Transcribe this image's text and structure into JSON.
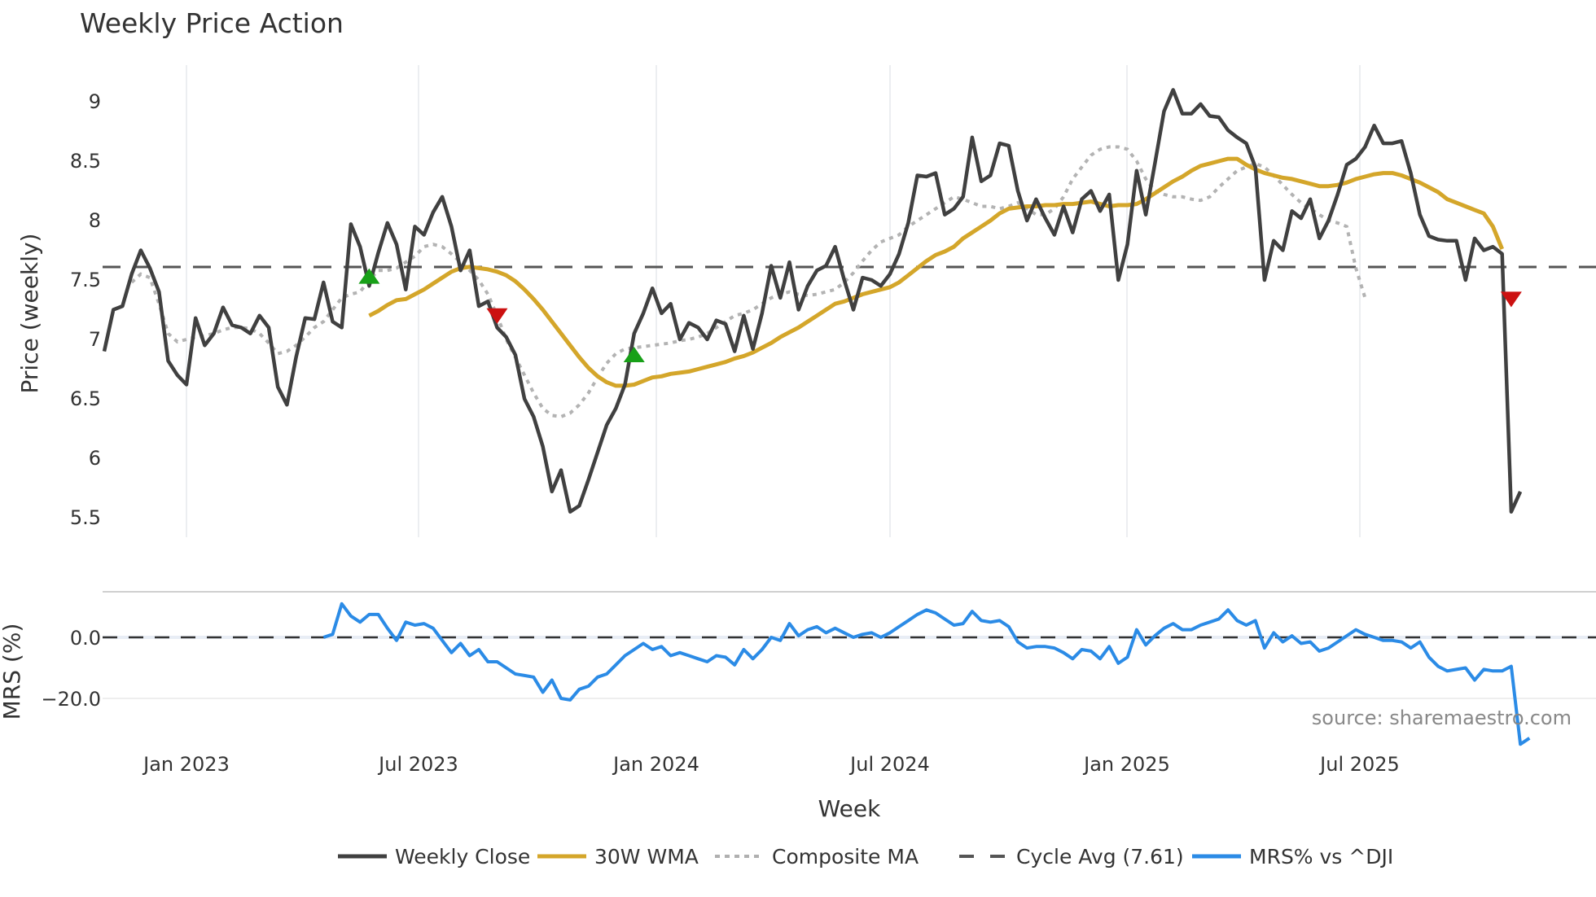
{
  "title": "Weekly Price Action",
  "source_note": "source: sharemaestro.com",
  "legend": [
    {
      "label": "Weekly Close",
      "color": "#404040",
      "style": "solid"
    },
    {
      "label": "30W WMA",
      "color": "#d4a62a",
      "style": "solid"
    },
    {
      "label": "Composite MA",
      "color": "#b0b0b0",
      "style": "dotted"
    },
    {
      "label": "Cycle Avg (7.61)",
      "color": "#555555",
      "style": "dashed"
    },
    {
      "label": "MRS% vs ^DJI",
      "color": "#2b8be6",
      "style": "solid"
    }
  ],
  "axes": {
    "price_ylabel": "Price (weekly)",
    "mrs_ylabel": "MRS (%)",
    "xlabel": "Week",
    "price_ticks": [
      "9",
      "8.5",
      "8",
      "7.5",
      "7",
      "6.5",
      "6",
      "5.5"
    ],
    "mrs_ticks": [
      "0.0",
      "−20.0"
    ],
    "x_ticks": [
      "Jan 2023",
      "Jul 2023",
      "Jan 2024",
      "Jul 2024",
      "Jan 2025",
      "Jul 2025"
    ]
  },
  "chart_data": {
    "type": "line",
    "title": "Weekly Price Action",
    "xlabel": "Week",
    "ylabel": "Price (weekly)",
    "ylim": [
      5.35,
      9.3
    ],
    "x_ticks": [
      "Jan 2023",
      "Jul 2023",
      "Jan 2024",
      "Jul 2024",
      "Jan 2025",
      "Jul 2025"
    ],
    "cycle_avg": 7.61,
    "series": [
      {
        "name": "Weekly Close",
        "start_week": 0,
        "values": [
          6.9,
          7.25,
          7.28,
          7.55,
          7.75,
          7.6,
          7.4,
          6.82,
          6.7,
          6.62,
          7.18,
          6.95,
          7.05,
          7.27,
          7.12,
          7.1,
          7.05,
          7.2,
          7.1,
          6.6,
          6.45,
          6.85,
          7.18,
          7.17,
          7.48,
          7.15,
          7.1,
          7.97,
          7.78,
          7.45,
          7.73,
          7.98,
          7.8,
          7.42,
          7.95,
          7.88,
          8.07,
          8.2,
          7.95,
          7.58,
          7.75,
          7.28,
          7.32,
          7.1,
          7.02,
          6.87,
          6.5,
          6.35,
          6.1,
          5.72,
          5.9,
          5.55,
          5.6,
          5.82,
          6.05,
          6.28,
          6.42,
          6.62,
          7.05,
          7.22,
          7.43,
          7.22,
          7.3,
          7.0,
          7.14,
          7.1,
          7.0,
          7.16,
          7.13,
          6.9,
          7.2,
          6.92,
          7.22,
          7.62,
          7.35,
          7.65,
          7.25,
          7.45,
          7.58,
          7.62,
          7.78,
          7.5,
          7.25,
          7.52,
          7.5,
          7.45,
          7.55,
          7.72,
          7.98,
          8.38,
          8.37,
          8.4,
          8.05,
          8.1,
          8.2,
          8.7,
          8.33,
          8.38,
          8.65,
          8.63,
          8.25,
          8.0,
          8.18,
          8.02,
          7.88,
          8.12,
          7.9,
          8.18,
          8.25,
          8.08,
          8.22,
          7.5,
          7.8,
          8.42,
          8.05,
          8.48,
          8.92,
          9.1,
          8.9,
          8.9,
          8.98,
          8.88,
          8.87,
          8.76,
          8.7,
          8.65,
          8.45,
          7.5,
          7.83,
          7.75,
          8.08,
          8.02,
          8.18,
          7.85,
          8.0,
          8.22,
          8.47,
          8.52,
          8.62,
          8.8,
          8.65,
          8.65,
          8.67,
          8.4,
          8.05,
          7.87,
          7.84,
          7.83,
          7.83,
          7.5,
          7.85,
          7.75,
          7.78,
          7.72,
          5.55,
          5.72
        ]
      },
      {
        "name": "30W WMA",
        "start_week": 29,
        "values": [
          7.2,
          7.24,
          7.29,
          7.33,
          7.34,
          7.38,
          7.42,
          7.47,
          7.52,
          7.57,
          7.6,
          7.61,
          7.6,
          7.59,
          7.57,
          7.54,
          7.49,
          7.42,
          7.34,
          7.25,
          7.15,
          7.05,
          6.95,
          6.85,
          6.76,
          6.69,
          6.64,
          6.61,
          6.61,
          6.62,
          6.65,
          6.68,
          6.69,
          6.71,
          6.72,
          6.73,
          6.75,
          6.77,
          6.79,
          6.81,
          6.84,
          6.86,
          6.89,
          6.93,
          6.97,
          7.02,
          7.06,
          7.1,
          7.15,
          7.2,
          7.25,
          7.3,
          7.32,
          7.35,
          7.38,
          7.4,
          7.42,
          7.44,
          7.48,
          7.54,
          7.6,
          7.66,
          7.71,
          7.74,
          7.78,
          7.85,
          7.9,
          7.95,
          8.0,
          8.06,
          8.1,
          8.11,
          8.12,
          8.12,
          8.13,
          8.13,
          8.14,
          8.14,
          8.15,
          8.16,
          8.14,
          8.12,
          8.13,
          8.13,
          8.14,
          8.18,
          8.23,
          8.28,
          8.33,
          8.37,
          8.42,
          8.46,
          8.48,
          8.5,
          8.52,
          8.52,
          8.47,
          8.43,
          8.4,
          8.38,
          8.36,
          8.35,
          8.33,
          8.31,
          8.29,
          8.29,
          8.3,
          8.32,
          8.35,
          8.37,
          8.39,
          8.4,
          8.4,
          8.38,
          8.35,
          8.32,
          8.28,
          8.24,
          8.18,
          8.15,
          8.12,
          8.09,
          8.06,
          7.95,
          7.76
        ]
      },
      {
        "name": "Composite MA",
        "start_week": 3,
        "values": [
          7.48,
          7.55,
          7.52,
          7.3,
          7.05,
          6.98,
          7.0,
          7.02,
          7.03,
          7.05,
          7.08,
          7.1,
          7.1,
          7.09,
          7.05,
          6.97,
          6.88,
          6.9,
          6.95,
          7.02,
          7.1,
          7.15,
          7.25,
          7.35,
          7.38,
          7.4,
          7.5,
          7.58,
          7.58,
          7.6,
          7.65,
          7.7,
          7.78,
          7.8,
          7.78,
          7.72,
          7.65,
          7.58,
          7.5,
          7.38,
          7.2,
          7.0,
          6.85,
          6.7,
          6.55,
          6.42,
          6.36,
          6.35,
          6.38,
          6.45,
          6.55,
          6.68,
          6.8,
          6.88,
          6.92,
          6.93,
          6.94,
          6.95,
          6.96,
          6.97,
          6.99,
          7.0,
          7.02,
          7.05,
          7.1,
          7.15,
          7.2,
          7.22,
          7.25,
          7.3,
          7.35,
          7.38,
          7.4,
          7.38,
          7.37,
          7.38,
          7.4,
          7.42,
          7.48,
          7.56,
          7.66,
          7.75,
          7.82,
          7.85,
          7.88,
          7.95,
          8.0,
          8.05,
          8.1,
          8.15,
          8.2,
          8.18,
          8.15,
          8.12,
          8.12,
          8.1,
          8.12,
          8.15,
          8.1,
          8.05,
          8.05,
          8.1,
          8.2,
          8.35,
          8.45,
          8.55,
          8.6,
          8.62,
          8.62,
          8.6,
          8.5,
          8.35,
          8.25,
          8.22,
          8.2,
          8.2,
          8.18,
          8.17,
          8.2,
          8.28,
          8.35,
          8.42,
          8.45,
          8.48,
          8.45,
          8.38,
          8.3,
          8.22,
          8.15,
          8.1,
          8.05,
          8.0,
          7.98,
          7.95,
          7.6,
          7.35
        ]
      },
      {
        "name": "MRS% vs ^DJI",
        "start_week": 24,
        "values": [
          0,
          1,
          11,
          7,
          5,
          7.5,
          7.5,
          3,
          -1,
          5,
          4,
          4.5,
          3,
          -1,
          -5,
          -2,
          -6,
          -4,
          -8,
          -8,
          -10,
          -12,
          -12.5,
          -13,
          -18,
          -14,
          -20,
          -20.5,
          -17,
          -16,
          -13,
          -12,
          -9,
          -6,
          -4,
          -2,
          -4,
          -3,
          -6,
          -5,
          -6,
          -7,
          -8,
          -6,
          -6.5,
          -9,
          -4,
          -7,
          -4,
          0,
          -1,
          4.5,
          0.5,
          2.5,
          3.5,
          1.5,
          3,
          1.5,
          0,
          1,
          1.5,
          0,
          1.5,
          3.5,
          5.5,
          7.5,
          9,
          8,
          6,
          4,
          4.5,
          8.5,
          5.5,
          5,
          5.5,
          3.5,
          -1.5,
          -3.5,
          -3,
          -3,
          -3.5,
          -5,
          -7,
          -4,
          -4.5,
          -7,
          -3,
          -8.5,
          -6.5,
          2.5,
          -2.5,
          0.5,
          3,
          4.5,
          2.5,
          2.5,
          4,
          5,
          6,
          9,
          5.5,
          4,
          5.5,
          -3.5,
          1.5,
          -1.5,
          0.5,
          -2,
          -1.5,
          -4.5,
          -3.5,
          -1.5,
          0.5,
          2.5,
          1,
          0,
          -1,
          -1,
          -1.5,
          -3.5,
          -1.5,
          -6.5,
          -9.5,
          -11,
          -10.5,
          -10,
          -14,
          -10.5,
          -11,
          -11,
          -9.5,
          -35,
          -33
        ]
      }
    ],
    "signals": [
      {
        "type": "buy",
        "week": 29,
        "price": 7.53,
        "color": "#18a018"
      },
      {
        "type": "sell",
        "week": 43,
        "price": 7.2,
        "color": "#cc1111"
      },
      {
        "type": "buy",
        "week": 58,
        "price": 6.87,
        "color": "#18a018"
      },
      {
        "type": "sell",
        "week": 154,
        "price": 7.34,
        "color": "#cc1111"
      }
    ],
    "mrs_ylim": [
      -37,
      15
    ],
    "mrs_ticks": [
      0,
      -20
    ],
    "legend_position": "bottom"
  }
}
